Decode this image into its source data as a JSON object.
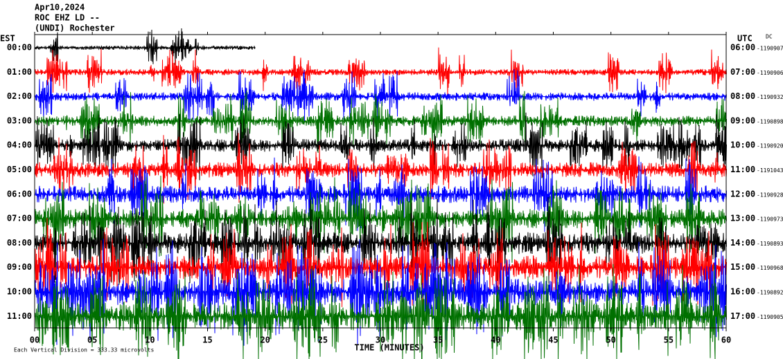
{
  "header": {
    "date": "Apr10,2024",
    "station": "ROC EHZ LD --",
    "location": "(UNDI) Rochester"
  },
  "left_axis_label": "EST",
  "right_axis_label": "UTC",
  "dc_label": "DC",
  "trace_colors": [
    "#000000",
    "#ff0000",
    "#0000ff",
    "#007000"
  ],
  "rows": [
    {
      "est": "00:00",
      "utc": "06:00",
      "offset": "-1190907"
    },
    {
      "est": "01:00",
      "utc": "07:00",
      "offset": "-1190906"
    },
    {
      "est": "02:00",
      "utc": "08:00",
      "offset": "-1190932"
    },
    {
      "est": "03:00",
      "utc": "09:00",
      "offset": "-1190898"
    },
    {
      "est": "04:00",
      "utc": "10:00",
      "offset": "-1190920"
    },
    {
      "est": "05:00",
      "utc": "11:00",
      "offset": "-1191043"
    },
    {
      "est": "06:00",
      "utc": "12:00",
      "offset": "-1190928"
    },
    {
      "est": "07:00",
      "utc": "13:00",
      "offset": "-1190973"
    },
    {
      "est": "08:00",
      "utc": "14:00",
      "offset": "-1190893"
    },
    {
      "est": "09:00",
      "utc": "15:00",
      "offset": "-1190968"
    },
    {
      "est": "10:00",
      "utc": "16:00",
      "offset": "-1190892"
    },
    {
      "est": "11:00",
      "utc": "17:00",
      "offset": "-1190905"
    }
  ],
  "x_axis": {
    "label": "TIME (MINUTES)",
    "ticks": [
      "00",
      "05",
      "10",
      "15",
      "20",
      "25",
      "30",
      "35",
      "40",
      "45",
      "50",
      "55",
      "60"
    ]
  },
  "footer": "Each Vertical Division = 333.33 microvolts"
}
